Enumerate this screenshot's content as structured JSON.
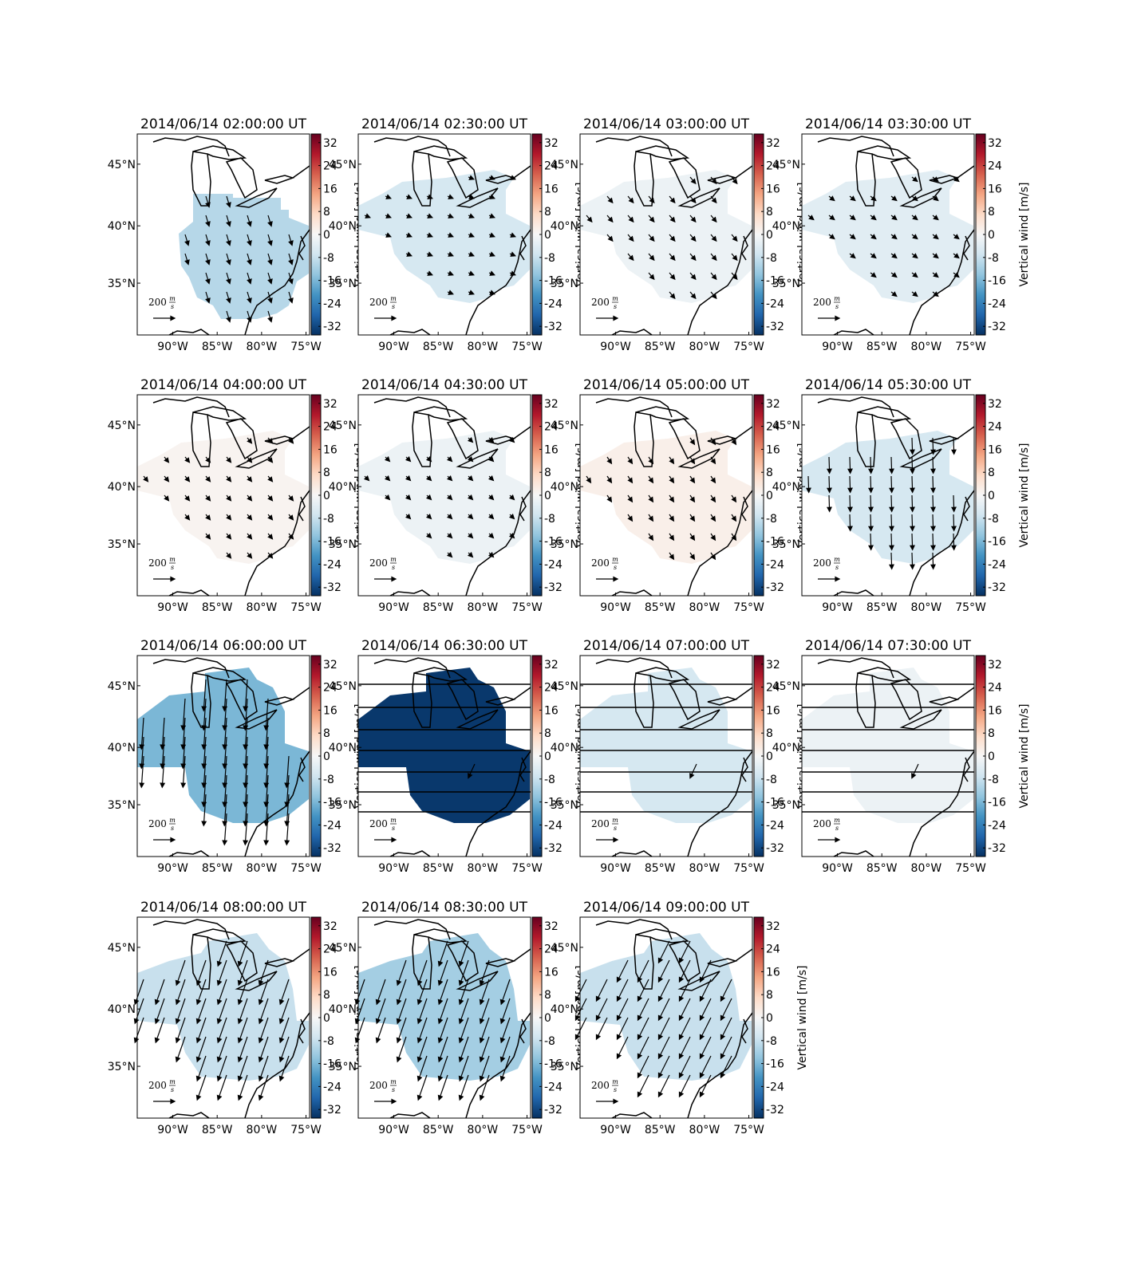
{
  "chart_data": [
    {
      "type": "map",
      "title": "2014/06/14 02:00:00 UT",
      "xlim": [
        -94,
        -74.6
      ],
      "ylim": [
        30.2,
        47.3
      ],
      "xticks": [
        {
          "value": -90,
          "label": "90°W"
        },
        {
          "value": -85,
          "label": "85°W"
        },
        {
          "value": -80,
          "label": "80°W"
        },
        {
          "value": -75,
          "label": "75°W"
        }
      ],
      "yticks": [
        {
          "value": 35,
          "label": "35°N"
        },
        {
          "value": 40,
          "label": "40°N"
        },
        {
          "value": 45,
          "label": "45°N"
        }
      ],
      "colorbar_lim": [
        -35,
        35
      ],
      "colorbar_ticks": [
        -32,
        -24,
        -16,
        -8,
        0,
        8,
        16,
        24,
        32
      ],
      "colorbar_label": "Vertical wind [m/s]",
      "vertical_wind": -10,
      "wind_u": 30,
      "wind_v": -100,
      "quiver_key": {
        "value": 200,
        "unit_num": "m",
        "unit_den": "s"
      }
    },
    {
      "type": "map",
      "title": "2014/06/14 02:30:00 UT",
      "xlim": [
        -94,
        -74.6
      ],
      "ylim": [
        30.2,
        47.3
      ],
      "xticks": [
        {
          "value": -90,
          "label": "90°W"
        },
        {
          "value": -85,
          "label": "85°W"
        },
        {
          "value": -80,
          "label": "80°W"
        },
        {
          "value": -75,
          "label": "75°W"
        }
      ],
      "yticks": [
        {
          "value": 35,
          "label": "35°N"
        },
        {
          "value": 40,
          "label": "40°N"
        },
        {
          "value": 45,
          "label": "45°N"
        }
      ],
      "colorbar_lim": [
        -35,
        35
      ],
      "colorbar_ticks": [
        -32,
        -24,
        -16,
        -8,
        0,
        8,
        16,
        24,
        32
      ],
      "colorbar_label": "Vertical wind [m/s]",
      "vertical_wind": -6,
      "wind_u": 50,
      "wind_v": -20,
      "quiver_key": {
        "value": 200,
        "unit_num": "m",
        "unit_den": "s"
      }
    },
    {
      "type": "map",
      "title": "2014/06/14 03:00:00 UT",
      "xlim": [
        -94,
        -74.6
      ],
      "ylim": [
        30.2,
        47.3
      ],
      "xticks": [
        {
          "value": -90,
          "label": "90°W"
        },
        {
          "value": -85,
          "label": "85°W"
        },
        {
          "value": -80,
          "label": "80°W"
        },
        {
          "value": -75,
          "label": "75°W"
        }
      ],
      "yticks": [
        {
          "value": 35,
          "label": "35°N"
        },
        {
          "value": 40,
          "label": "40°N"
        },
        {
          "value": 45,
          "label": "45°N"
        }
      ],
      "colorbar_lim": [
        -35,
        35
      ],
      "colorbar_ticks": [
        -32,
        -24,
        -16,
        -8,
        0,
        8,
        16,
        24,
        32
      ],
      "colorbar_label": "Vertical wind [m/s]",
      "vertical_wind": -2,
      "wind_u": 50,
      "wind_v": -60,
      "quiver_key": {
        "value": 200,
        "unit_num": "m",
        "unit_den": "s"
      }
    },
    {
      "type": "map",
      "title": "2014/06/14 03:30:00 UT",
      "xlim": [
        -94,
        -74.6
      ],
      "ylim": [
        30.2,
        47.3
      ],
      "xticks": [
        {
          "value": -90,
          "label": "90°W"
        },
        {
          "value": -85,
          "label": "85°W"
        },
        {
          "value": -80,
          "label": "80°W"
        },
        {
          "value": -75,
          "label": "75°W"
        }
      ],
      "yticks": [
        {
          "value": 35,
          "label": "35°N"
        },
        {
          "value": 40,
          "label": "40°N"
        },
        {
          "value": 45,
          "label": "45°N"
        }
      ],
      "colorbar_lim": [
        -35,
        35
      ],
      "colorbar_ticks": [
        -32,
        -24,
        -16,
        -8,
        0,
        8,
        16,
        24,
        32
      ],
      "colorbar_label": "Vertical wind [m/s]",
      "vertical_wind": -4,
      "wind_u": 50,
      "wind_v": -40,
      "quiver_key": {
        "value": 200,
        "unit_num": "m",
        "unit_den": "s"
      }
    },
    {
      "type": "map",
      "title": "2014/06/14 04:00:00 UT",
      "xlim": [
        -94,
        -74.6
      ],
      "ylim": [
        30.2,
        47.3
      ],
      "xticks": [
        {
          "value": -90,
          "label": "90°W"
        },
        {
          "value": -85,
          "label": "85°W"
        },
        {
          "value": -80,
          "label": "80°W"
        },
        {
          "value": -75,
          "label": "75°W"
        }
      ],
      "yticks": [
        {
          "value": 35,
          "label": "35°N"
        },
        {
          "value": 40,
          "label": "40°N"
        },
        {
          "value": 45,
          "label": "45°N"
        }
      ],
      "colorbar_lim": [
        -35,
        35
      ],
      "colorbar_ticks": [
        -32,
        -24,
        -16,
        -8,
        0,
        8,
        16,
        24,
        32
      ],
      "colorbar_label": "Vertical wind [m/s]",
      "vertical_wind": 1,
      "wind_u": 40,
      "wind_v": -50,
      "quiver_key": {
        "value": 200,
        "unit_num": "m",
        "unit_den": "s"
      }
    },
    {
      "type": "map",
      "title": "2014/06/14 04:30:00 UT",
      "xlim": [
        -94,
        -74.6
      ],
      "ylim": [
        30.2,
        47.3
      ],
      "xticks": [
        {
          "value": -90,
          "label": "90°W"
        },
        {
          "value": -85,
          "label": "85°W"
        },
        {
          "value": -80,
          "label": "80°W"
        },
        {
          "value": -75,
          "label": "75°W"
        }
      ],
      "yticks": [
        {
          "value": 35,
          "label": "35°N"
        },
        {
          "value": 40,
          "label": "40°N"
        },
        {
          "value": 45,
          "label": "45°N"
        }
      ],
      "colorbar_lim": [
        -35,
        35
      ],
      "colorbar_ticks": [
        -32,
        -24,
        -16,
        -8,
        0,
        8,
        16,
        24,
        32
      ],
      "colorbar_label": "Vertical wind [m/s]",
      "vertical_wind": -2,
      "wind_u": 40,
      "wind_v": -40,
      "quiver_key": {
        "value": 200,
        "unit_num": "m",
        "unit_den": "s"
      }
    },
    {
      "type": "map",
      "title": "2014/06/14 05:00:00 UT",
      "xlim": [
        -94,
        -74.6
      ],
      "ylim": [
        30.2,
        47.3
      ],
      "xticks": [
        {
          "value": -90,
          "label": "90°W"
        },
        {
          "value": -85,
          "label": "85°W"
        },
        {
          "value": -80,
          "label": "80°W"
        },
        {
          "value": -75,
          "label": "75°W"
        }
      ],
      "yticks": [
        {
          "value": 35,
          "label": "35°N"
        },
        {
          "value": 40,
          "label": "40°N"
        },
        {
          "value": 45,
          "label": "45°N"
        }
      ],
      "colorbar_lim": [
        -35,
        35
      ],
      "colorbar_ticks": [
        -32,
        -24,
        -16,
        -8,
        0,
        8,
        16,
        24,
        32
      ],
      "colorbar_label": "Vertical wind [m/s]",
      "vertical_wind": 2,
      "wind_u": 40,
      "wind_v": -60,
      "quiver_key": {
        "value": 200,
        "unit_num": "m",
        "unit_den": "s"
      }
    },
    {
      "type": "map",
      "title": "2014/06/14 05:30:00 UT",
      "xlim": [
        -94,
        -74.6
      ],
      "ylim": [
        30.2,
        47.3
      ],
      "xticks": [
        {
          "value": -90,
          "label": "90°W"
        },
        {
          "value": -85,
          "label": "85°W"
        },
        {
          "value": -80,
          "label": "80°W"
        },
        {
          "value": -75,
          "label": "75°W"
        }
      ],
      "yticks": [
        {
          "value": 35,
          "label": "35°N"
        },
        {
          "value": 40,
          "label": "40°N"
        },
        {
          "value": 45,
          "label": "45°N"
        }
      ],
      "colorbar_lim": [
        -35,
        35
      ],
      "colorbar_ticks": [
        -32,
        -24,
        -16,
        -8,
        0,
        8,
        16,
        24,
        32
      ],
      "colorbar_label": "Vertical wind [m/s]",
      "vertical_wind": -6,
      "wind_u": 5,
      "wind_v": -150,
      "quiver_key": {
        "value": 200,
        "unit_num": "m",
        "unit_den": "s"
      }
    },
    {
      "type": "map",
      "title": "2014/06/14 06:00:00 UT",
      "xlim": [
        -94,
        -74.6
      ],
      "ylim": [
        30.2,
        47.3
      ],
      "xticks": [
        {
          "value": -90,
          "label": "90°W"
        },
        {
          "value": -85,
          "label": "85°W"
        },
        {
          "value": -80,
          "label": "80°W"
        },
        {
          "value": -75,
          "label": "75°W"
        }
      ],
      "yticks": [
        {
          "value": 35,
          "label": "35°N"
        },
        {
          "value": 40,
          "label": "40°N"
        },
        {
          "value": 45,
          "label": "45°N"
        }
      ],
      "colorbar_lim": [
        -35,
        35
      ],
      "colorbar_ticks": [
        -32,
        -24,
        -16,
        -8,
        0,
        8,
        16,
        24,
        32
      ],
      "colorbar_label": "Vertical wind [m/s]",
      "vertical_wind": -16,
      "wind_u": -20,
      "wind_v": -290,
      "quiver_key": {
        "value": 200,
        "unit_num": "m",
        "unit_den": "s"
      }
    },
    {
      "type": "map",
      "title": "2014/06/14 06:30:00 UT",
      "xlim": [
        -94,
        -74.6
      ],
      "ylim": [
        30.2,
        47.3
      ],
      "xticks": [
        {
          "value": -90,
          "label": "90°W"
        },
        {
          "value": -85,
          "label": "85°W"
        },
        {
          "value": -80,
          "label": "80°W"
        },
        {
          "value": -75,
          "label": "75°W"
        }
      ],
      "yticks": [
        {
          "value": 35,
          "label": "35°N"
        },
        {
          "value": 40,
          "label": "40°N"
        },
        {
          "value": 45,
          "label": "45°N"
        }
      ],
      "colorbar_lim": [
        -35,
        35
      ],
      "colorbar_ticks": [
        -32,
        -24,
        -16,
        -8,
        0,
        8,
        16,
        24,
        32
      ],
      "colorbar_label": "Vertical wind [m/s]",
      "vertical_wind": -34,
      "wind_u": -60,
      "wind_v": -130,
      "single_vector": true,
      "horizontal_lines": true,
      "quiver_key": {
        "value": 200,
        "unit_num": "m",
        "unit_den": "s"
      }
    },
    {
      "type": "map",
      "title": "2014/06/14 07:00:00 UT",
      "xlim": [
        -94,
        -74.6
      ],
      "ylim": [
        30.2,
        47.3
      ],
      "xticks": [
        {
          "value": -90,
          "label": "90°W"
        },
        {
          "value": -85,
          "label": "85°W"
        },
        {
          "value": -80,
          "label": "80°W"
        },
        {
          "value": -75,
          "label": "75°W"
        }
      ],
      "yticks": [
        {
          "value": 35,
          "label": "35°N"
        },
        {
          "value": 40,
          "label": "40°N"
        },
        {
          "value": 45,
          "label": "45°N"
        }
      ],
      "colorbar_lim": [
        -35,
        35
      ],
      "colorbar_ticks": [
        -32,
        -24,
        -16,
        -8,
        0,
        8,
        16,
        24,
        32
      ],
      "colorbar_label": "Vertical wind [m/s]",
      "vertical_wind": -6,
      "wind_u": -60,
      "wind_v": -130,
      "single_vector": true,
      "horizontal_lines": true,
      "quiver_key": {
        "value": 200,
        "unit_num": "m",
        "unit_den": "s"
      }
    },
    {
      "type": "map",
      "title": "2014/06/14 07:30:00 UT",
      "xlim": [
        -94,
        -74.6
      ],
      "ylim": [
        30.2,
        47.3
      ],
      "xticks": [
        {
          "value": -90,
          "label": "90°W"
        },
        {
          "value": -85,
          "label": "85°W"
        },
        {
          "value": -80,
          "label": "80°W"
        },
        {
          "value": -75,
          "label": "75°W"
        }
      ],
      "yticks": [
        {
          "value": 35,
          "label": "35°N"
        },
        {
          "value": 40,
          "label": "40°N"
        },
        {
          "value": 45,
          "label": "45°N"
        }
      ],
      "colorbar_lim": [
        -35,
        35
      ],
      "colorbar_ticks": [
        -32,
        -24,
        -16,
        -8,
        0,
        8,
        16,
        24,
        32
      ],
      "colorbar_label": "Vertical wind [m/s]",
      "vertical_wind": -2,
      "wind_u": -60,
      "wind_v": -130,
      "single_vector": true,
      "horizontal_lines": true,
      "quiver_key": {
        "value": 200,
        "unit_num": "m",
        "unit_den": "s"
      }
    },
    {
      "type": "map",
      "title": "2014/06/14 08:00:00 UT",
      "xlim": [
        -94,
        -74.6
      ],
      "ylim": [
        30.2,
        47.3
      ],
      "xticks": [
        {
          "value": -90,
          "label": "90°W"
        },
        {
          "value": -85,
          "label": "85°W"
        },
        {
          "value": -80,
          "label": "80°W"
        },
        {
          "value": -75,
          "label": "75°W"
        }
      ],
      "yticks": [
        {
          "value": 35,
          "label": "35°N"
        },
        {
          "value": 40,
          "label": "40°N"
        },
        {
          "value": 45,
          "label": "45°N"
        }
      ],
      "colorbar_lim": [
        -35,
        35
      ],
      "colorbar_ticks": [
        -32,
        -24,
        -16,
        -8,
        0,
        8,
        16,
        24,
        32
      ],
      "colorbar_label": "Vertical wind [m/s]",
      "vertical_wind": -8,
      "wind_u": -80,
      "wind_v": -230,
      "quiver_key": {
        "value": 200,
        "unit_num": "m",
        "unit_den": "s"
      }
    },
    {
      "type": "map",
      "title": "2014/06/14 08:30:00 UT",
      "xlim": [
        -94,
        -74.6
      ],
      "ylim": [
        30.2,
        47.3
      ],
      "xticks": [
        {
          "value": -90,
          "label": "90°W"
        },
        {
          "value": -85,
          "label": "85°W"
        },
        {
          "value": -80,
          "label": "80°W"
        },
        {
          "value": -75,
          "label": "75°W"
        }
      ],
      "yticks": [
        {
          "value": 35,
          "label": "35°N"
        },
        {
          "value": 40,
          "label": "40°N"
        },
        {
          "value": 45,
          "label": "45°N"
        }
      ],
      "colorbar_lim": [
        -35,
        35
      ],
      "colorbar_ticks": [
        -32,
        -24,
        -16,
        -8,
        0,
        8,
        16,
        24,
        32
      ],
      "colorbar_label": "Vertical wind [m/s]",
      "vertical_wind": -12,
      "wind_u": -80,
      "wind_v": -230,
      "quiver_key": {
        "value": 200,
        "unit_num": "m",
        "unit_den": "s"
      }
    },
    {
      "type": "map",
      "title": "2014/06/14 09:00:00 UT",
      "xlim": [
        -94,
        -74.6
      ],
      "ylim": [
        30.2,
        47.3
      ],
      "xticks": [
        {
          "value": -90,
          "label": "90°W"
        },
        {
          "value": -85,
          "label": "85°W"
        },
        {
          "value": -80,
          "label": "80°W"
        },
        {
          "value": -75,
          "label": "75°W"
        }
      ],
      "yticks": [
        {
          "value": 35,
          "label": "35°N"
        },
        {
          "value": 40,
          "label": "40°N"
        },
        {
          "value": 45,
          "label": "45°N"
        }
      ],
      "colorbar_lim": [
        -35,
        35
      ],
      "colorbar_ticks": [
        -32,
        -24,
        -16,
        -8,
        0,
        8,
        16,
        24,
        32
      ],
      "colorbar_label": "Vertical wind [m/s]",
      "vertical_wind": -8,
      "wind_u": -100,
      "wind_v": -200,
      "quiver_key": {
        "value": 200,
        "unit_num": "m",
        "unit_den": "s"
      }
    }
  ]
}
